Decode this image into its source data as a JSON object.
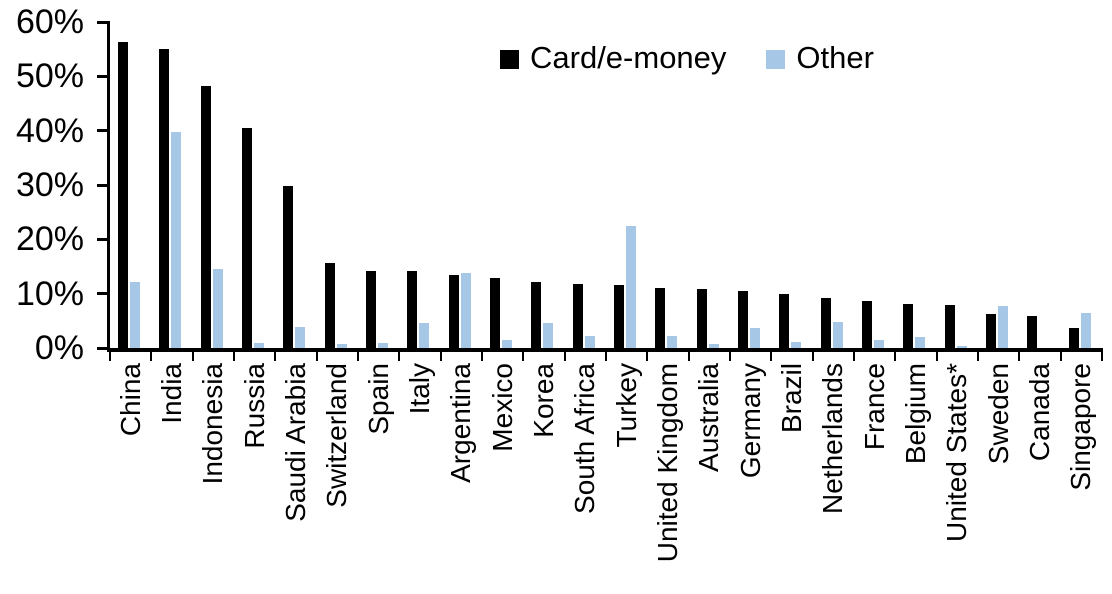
{
  "chart_data": {
    "type": "bar",
    "title": "",
    "xlabel": "",
    "ylabel": "",
    "ylim": [
      0,
      60
    ],
    "y_ticks": [
      {
        "value": 0,
        "label": "0%"
      },
      {
        "value": 10,
        "label": "10%"
      },
      {
        "value": 20,
        "label": "20%"
      },
      {
        "value": 30,
        "label": "30%"
      },
      {
        "value": 40,
        "label": "40%"
      },
      {
        "value": 50,
        "label": "50%"
      },
      {
        "value": 60,
        "label": "60%"
      }
    ],
    "grid": false,
    "legend_position": "top-center",
    "categories": [
      "China",
      "India",
      "Indonesia",
      "Russia",
      "Saudi Arabia",
      "Switzerland",
      "Spain",
      "Italy",
      "Argentina",
      "Mexico",
      "Korea",
      "South Africa",
      "Turkey",
      "United Kingdom",
      "Australia",
      "Germany",
      "Brazil",
      "Netherlands",
      "France",
      "Belgium",
      "United States*",
      "Sweden",
      "Canada",
      "Singapore"
    ],
    "series": [
      {
        "name": "Card/e-money",
        "color": "#000000",
        "values": [
          56.3,
          55.0,
          48.2,
          40.4,
          29.8,
          15.6,
          14.2,
          14.1,
          13.4,
          12.9,
          12.2,
          11.8,
          11.6,
          11.0,
          10.8,
          10.5,
          10.0,
          9.2,
          8.6,
          8.1,
          7.9,
          6.3,
          5.9,
          3.7
        ]
      },
      {
        "name": "Other",
        "color": "#A7C7E6",
        "values": [
          12.2,
          39.8,
          14.5,
          1.0,
          3.9,
          0.8,
          1.0,
          4.6,
          13.8,
          1.4,
          4.6,
          2.3,
          22.5,
          2.2,
          0.8,
          3.7,
          1.1,
          4.7,
          1.5,
          2.0,
          0.3,
          7.8,
          0.0,
          6.5
        ]
      }
    ]
  }
}
